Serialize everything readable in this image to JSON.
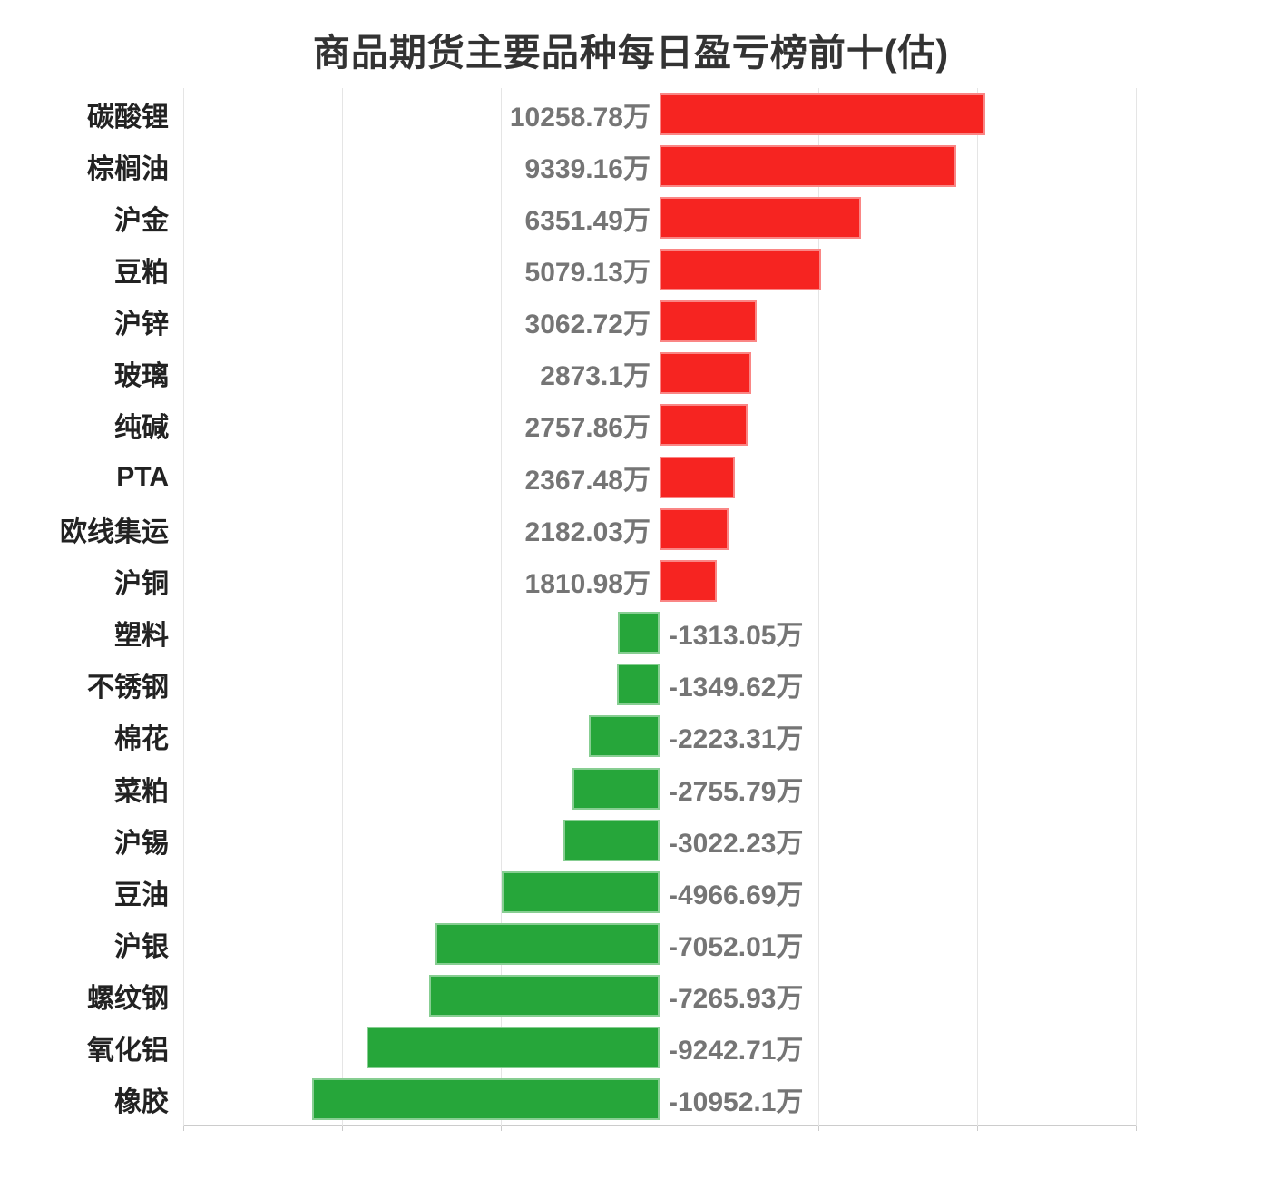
{
  "title": "商品期货主要品种每日盈亏榜前十(估)",
  "chart_data": {
    "type": "bar",
    "orientation": "horizontal",
    "title": "商品期货主要品种每日盈亏榜前十(估)",
    "unit": "万",
    "categories": [
      "碳酸锂",
      "棕榈油",
      "沪金",
      "豆粕",
      "沪锌",
      "玻璃",
      "纯碱",
      "PTA",
      "欧线集运",
      "沪铜",
      "塑料",
      "不锈钢",
      "棉花",
      "菜粕",
      "沪锡",
      "豆油",
      "沪银",
      "螺纹钢",
      "氧化铝",
      "橡胶"
    ],
    "values": [
      10258.78,
      9339.16,
      6351.49,
      5079.13,
      3062.72,
      2873.1,
      2757.86,
      2367.48,
      2182.03,
      1810.98,
      -1313.05,
      -1349.62,
      -2223.31,
      -2755.79,
      -3022.23,
      -4966.69,
      -7052.01,
      -7265.93,
      -9242.71,
      -10952.1
    ],
    "value_labels": [
      "10258.78万",
      "9339.16万",
      "6351.49万",
      "5079.13万",
      "3062.72万",
      "2873.1万",
      "2757.86万",
      "2367.48万",
      "2182.03万",
      "1810.98万",
      "-1313.05万",
      "-1349.62万",
      "-2223.31万",
      "-2755.79万",
      "-3022.23万",
      "-4966.69万",
      "-7052.01万",
      "-7265.93万",
      "-9242.71万",
      "-10952.1万"
    ],
    "xlim": [
      -15000,
      15000
    ],
    "grid_step": 5000,
    "grid": true,
    "x_tick_labels_visible": false,
    "legend": null,
    "positive_color": "#f62421",
    "negative_color": "#26a63a",
    "value_label_color": "#757575",
    "category_label_color": "#222222",
    "title_color": "#333333",
    "gridline_color": "#e5e5e5",
    "axis_line_color": "#cccccc"
  }
}
